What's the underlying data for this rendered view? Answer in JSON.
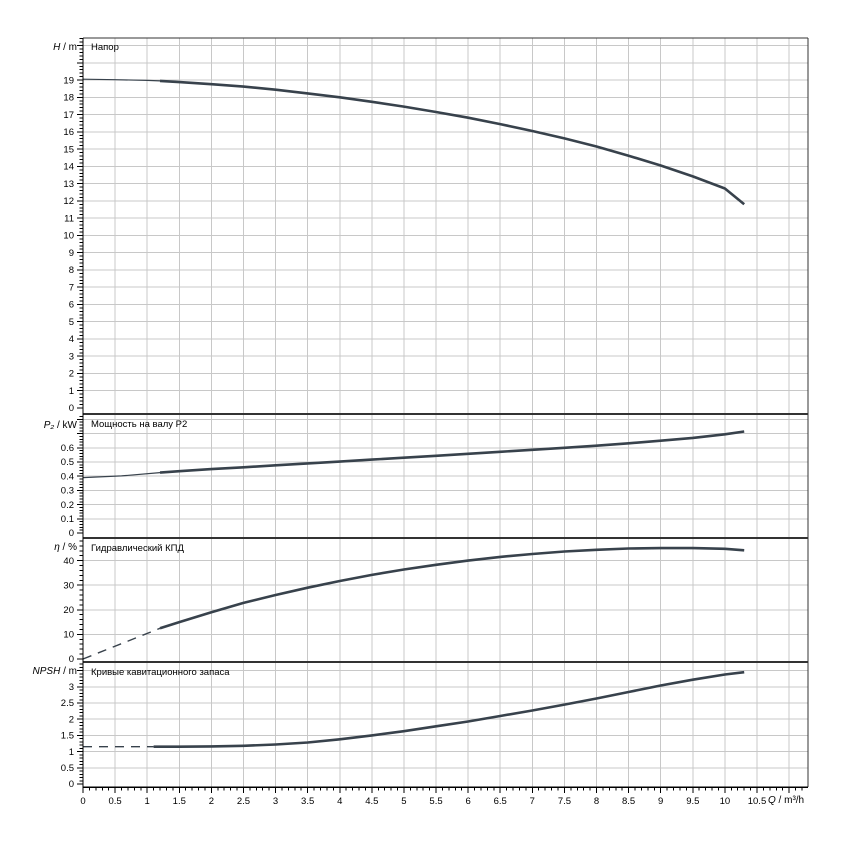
{
  "colors": {
    "curve": "#38424c",
    "grid": "#c8c8c8",
    "frame": "#333333",
    "axis": "#000000",
    "text": "#000000",
    "background": "#ffffff"
  },
  "chart_data": {
    "type": "line",
    "x_axis": {
      "label_symbol": "Q",
      "label_unit": " / m³/h",
      "min": 0,
      "max": 11.3,
      "major_step": 0.5,
      "minor_step": 0.1,
      "tick_labels": [
        [
          0,
          "0"
        ],
        [
          0.5,
          "0.5"
        ],
        [
          1,
          "1"
        ],
        [
          1.5,
          "1.5"
        ],
        [
          2,
          "2"
        ],
        [
          2.5,
          "2.5"
        ],
        [
          3,
          "3"
        ],
        [
          3.5,
          "3.5"
        ],
        [
          4,
          "4"
        ],
        [
          4.5,
          "4.5"
        ],
        [
          5,
          "5"
        ],
        [
          5.5,
          "5.5"
        ],
        [
          6,
          "6"
        ],
        [
          6.5,
          "6.5"
        ],
        [
          7,
          "7"
        ],
        [
          7.5,
          "7.5"
        ],
        [
          8,
          "8"
        ],
        [
          8.5,
          "8.5"
        ],
        [
          9,
          "9"
        ],
        [
          9.5,
          "9.5"
        ],
        [
          10,
          "10"
        ],
        [
          10.5,
          "10.5"
        ]
      ]
    },
    "charts": [
      {
        "id": "head",
        "title": "Напор",
        "axis_symbol": "H",
        "axis_unit": " / m",
        "y_min": 0,
        "y_max": 21.4,
        "major_step": 1,
        "minor_step": 0.2,
        "grid_step": 1,
        "tick_labels": [
          [
            0,
            "0"
          ],
          [
            1,
            "1"
          ],
          [
            2,
            "2"
          ],
          [
            3,
            "3"
          ],
          [
            4,
            "4"
          ],
          [
            5,
            "5"
          ],
          [
            6,
            "6"
          ],
          [
            7,
            "7"
          ],
          [
            8,
            "8"
          ],
          [
            9,
            "9"
          ],
          [
            10,
            "10"
          ],
          [
            11,
            "11"
          ],
          [
            12,
            "12"
          ],
          [
            13,
            "13"
          ],
          [
            14,
            "14"
          ],
          [
            15,
            "15"
          ],
          [
            16,
            "16"
          ],
          [
            17,
            "17"
          ],
          [
            18,
            "18"
          ],
          [
            19,
            "19"
          ]
        ],
        "series": [
          {
            "style": "thin",
            "points": [
              [
                0,
                19.05
              ],
              [
                0.5,
                19.02
              ],
              [
                1,
                18.98
              ],
              [
                1.2,
                18.95
              ]
            ]
          },
          {
            "style": "solid",
            "points": [
              [
                1.2,
                18.95
              ],
              [
                1.5,
                18.88
              ],
              [
                2,
                18.76
              ],
              [
                2.5,
                18.62
              ],
              [
                3,
                18.44
              ],
              [
                3.5,
                18.23
              ],
              [
                4,
                18.0
              ],
              [
                4.5,
                17.74
              ],
              [
                5,
                17.46
              ],
              [
                5.5,
                17.15
              ],
              [
                6,
                16.82
              ],
              [
                6.5,
                16.45
              ],
              [
                7,
                16.05
              ],
              [
                7.5,
                15.62
              ],
              [
                8,
                15.15
              ],
              [
                8.5,
                14.62
              ],
              [
                9,
                14.05
              ],
              [
                9.5,
                13.42
              ],
              [
                10,
                12.72
              ],
              [
                10.3,
                11.8
              ]
            ]
          }
        ]
      },
      {
        "id": "power",
        "title": "Мощность на валу P2",
        "axis_symbol": "P₂",
        "axis_unit": " / kW",
        "y_min": 0,
        "y_max": 0.84,
        "major_step": 0.1,
        "minor_step": 0.02,
        "grid_step": 0.1,
        "tick_labels": [
          [
            0,
            "0"
          ],
          [
            0.1,
            "0.1"
          ],
          [
            0.2,
            "0.2"
          ],
          [
            0.3,
            "0.3"
          ],
          [
            0.4,
            "0.4"
          ],
          [
            0.5,
            "0.5"
          ],
          [
            0.6,
            "0.6"
          ]
        ],
        "series": [
          {
            "style": "thin",
            "points": [
              [
                0,
                0.39
              ],
              [
                0.6,
                0.402
              ],
              [
                1.2,
                0.425
              ]
            ]
          },
          {
            "style": "solid",
            "points": [
              [
                1.2,
                0.425
              ],
              [
                1.5,
                0.435
              ],
              [
                2,
                0.45
              ],
              [
                2.5,
                0.463
              ],
              [
                3,
                0.477
              ],
              [
                3.5,
                0.49
              ],
              [
                4,
                0.503
              ],
              [
                4.5,
                0.517
              ],
              [
                5,
                0.53
              ],
              [
                5.5,
                0.544
              ],
              [
                6,
                0.558
              ],
              [
                6.5,
                0.572
              ],
              [
                7,
                0.586
              ],
              [
                7.5,
                0.6
              ],
              [
                8,
                0.615
              ],
              [
                8.5,
                0.632
              ],
              [
                9,
                0.65
              ],
              [
                9.5,
                0.67
              ],
              [
                10,
                0.695
              ],
              [
                10.3,
                0.715
              ]
            ]
          }
        ]
      },
      {
        "id": "efficiency",
        "title": "Гидравлический КПД",
        "axis_symbol": "η",
        "axis_unit": " / %",
        "y_min": 0,
        "y_max": 49,
        "major_step": 10,
        "minor_step": 2,
        "grid_step": 10,
        "tick_labels": [
          [
            0,
            "0"
          ],
          [
            10,
            "10"
          ],
          [
            20,
            "20"
          ],
          [
            30,
            "30"
          ],
          [
            40,
            "40"
          ]
        ],
        "series": [
          {
            "style": "dashed",
            "points": [
              [
                0,
                0
              ],
              [
                1.2,
                12.5
              ]
            ]
          },
          {
            "style": "solid",
            "points": [
              [
                1.2,
                12.5
              ],
              [
                1.5,
                15
              ],
              [
                2,
                19
              ],
              [
                2.5,
                22.8
              ],
              [
                3,
                26
              ],
              [
                3.5,
                29
              ],
              [
                4,
                31.7
              ],
              [
                4.5,
                34.2
              ],
              [
                5,
                36.4
              ],
              [
                5.5,
                38.3
              ],
              [
                6,
                40
              ],
              [
                6.5,
                41.5
              ],
              [
                7,
                42.7
              ],
              [
                7.5,
                43.7
              ],
              [
                8,
                44.4
              ],
              [
                8.5,
                44.9
              ],
              [
                9,
                45.1
              ],
              [
                9.5,
                45.1
              ],
              [
                10,
                44.8
              ],
              [
                10.3,
                44.2
              ]
            ]
          }
        ]
      },
      {
        "id": "npsh",
        "title": "Кривые кавитационного запаса",
        "axis_symbol": "NPSH",
        "axis_unit": " / m",
        "y_min": 0,
        "y_max": 3.78,
        "major_step": 0.5,
        "minor_step": 0.1,
        "grid_step": 0.5,
        "tick_labels": [
          [
            0,
            "0"
          ],
          [
            0.5,
            "0.5"
          ],
          [
            1,
            "1"
          ],
          [
            1.5,
            "1.5"
          ],
          [
            2,
            "2"
          ],
          [
            2.5,
            "2.5"
          ],
          [
            3,
            "3"
          ]
        ],
        "series": [
          {
            "style": "dashed",
            "points": [
              [
                0,
                1.15
              ],
              [
                1.1,
                1.15
              ]
            ]
          },
          {
            "style": "solid",
            "points": [
              [
                1.1,
                1.15
              ],
              [
                1.5,
                1.15
              ],
              [
                2,
                1.16
              ],
              [
                2.5,
                1.18
              ],
              [
                3,
                1.22
              ],
              [
                3.5,
                1.28
              ],
              [
                4,
                1.38
              ],
              [
                4.5,
                1.5
              ],
              [
                5,
                1.63
              ],
              [
                5.5,
                1.78
              ],
              [
                6,
                1.93
              ],
              [
                6.5,
                2.1
              ],
              [
                7,
                2.27
              ],
              [
                7.5,
                2.45
              ],
              [
                8,
                2.64
              ],
              [
                8.5,
                2.84
              ],
              [
                9,
                3.04
              ],
              [
                9.5,
                3.22
              ],
              [
                10,
                3.38
              ],
              [
                10.3,
                3.45
              ]
            ]
          }
        ]
      }
    ]
  }
}
